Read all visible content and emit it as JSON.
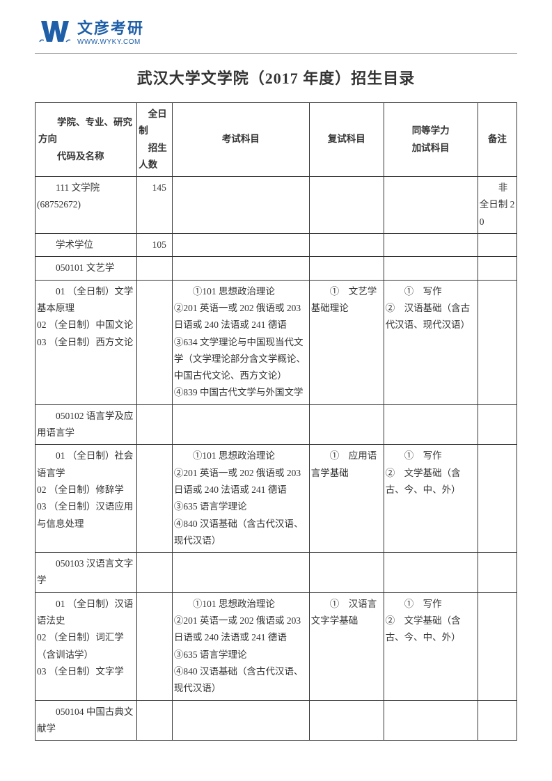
{
  "logo": {
    "title": "文彦考研",
    "url": "WWW.WYKY.COM"
  },
  "doc_title": "武汉大学文学院（2017 年度）招生目录",
  "headers": {
    "col1": "学院、专业、研究方向\n代码及名称",
    "col2_top": "全日制",
    "col2_bottom": "招生人数",
    "col3": "考试科目",
    "col4": "复试科目",
    "col5": "同等学力\n加试科目",
    "col6": "备注"
  },
  "rows": [
    {
      "c1": "    111 文学院\n(68752672)",
      "c2": "145",
      "c3": "",
      "c4": "",
      "c5": "",
      "c6": "    非全日制 20"
    },
    {
      "c1": "    学术学位",
      "c2": "105",
      "c3": "",
      "c4": "",
      "c5": "",
      "c6": ""
    },
    {
      "c1": "    050101 文艺学",
      "span": true
    },
    {
      "c1": "    01 （全日制）文学基本原理\n02 （全日制）中国文论\n03 （全日制）西方文论",
      "c2": "",
      "c3": "    ①101 思想政治理论\n②201 英语一或 202 俄语或 203 日语或 240 法语或 241 德语\n③634 文学理论与中国现当代文学（文学理论部分含文学概论、中国古代文论、西方文论）\n④839 中国古代文学与外国文学",
      "c4": "    ①　文艺学基础理论",
      "c5": "    ①　写作\n②　汉语基础（含古代汉语、现代汉语）",
      "c6": ""
    },
    {
      "c1": "    050102 语言学及应用语言学",
      "c2": "",
      "c3": "",
      "c4": "",
      "c5": "",
      "c6": ""
    },
    {
      "c1": "    01 （全日制）社会语言学\n02 （全日制）修辞学\n03 （全日制）汉语应用与信息处理",
      "c2": "",
      "c3": "    ①101 思想政治理论\n②201 英语一或 202 俄语或 203 日语或 240 法语或 241 德语\n③635 语言学理论\n④840 汉语基础（含古代汉语、现代汉语）",
      "c4": "    ①　应用语言学基础",
      "c5": "    ①　写作\n②　文学基础（含古、今、中、外）",
      "c6": ""
    },
    {
      "c1": "    050103 汉语言文字学",
      "c2": "",
      "c3": "",
      "c4": "",
      "c5": "",
      "c6": ""
    },
    {
      "c1": "    01 （全日制）汉语语法史\n02 （全日制）词汇学（含训诂学）\n03 （全日制）文字学",
      "c2": "",
      "c3": "    ①101 思想政治理论\n②201 英语一或 202 俄语或 203 日语或 240 法语或 241 德语\n③635 语言学理论\n④840 汉语基础（含古代汉语、现代汉语）",
      "c4": "    ①　汉语言文字学基础",
      "c5": "    ①　写作\n②　文学基础（含古、今、中、外）",
      "c6": ""
    },
    {
      "c1": "    050104 中国古典文献学",
      "c2": "",
      "c3": "",
      "c4": "",
      "c5": "",
      "c6": ""
    }
  ]
}
